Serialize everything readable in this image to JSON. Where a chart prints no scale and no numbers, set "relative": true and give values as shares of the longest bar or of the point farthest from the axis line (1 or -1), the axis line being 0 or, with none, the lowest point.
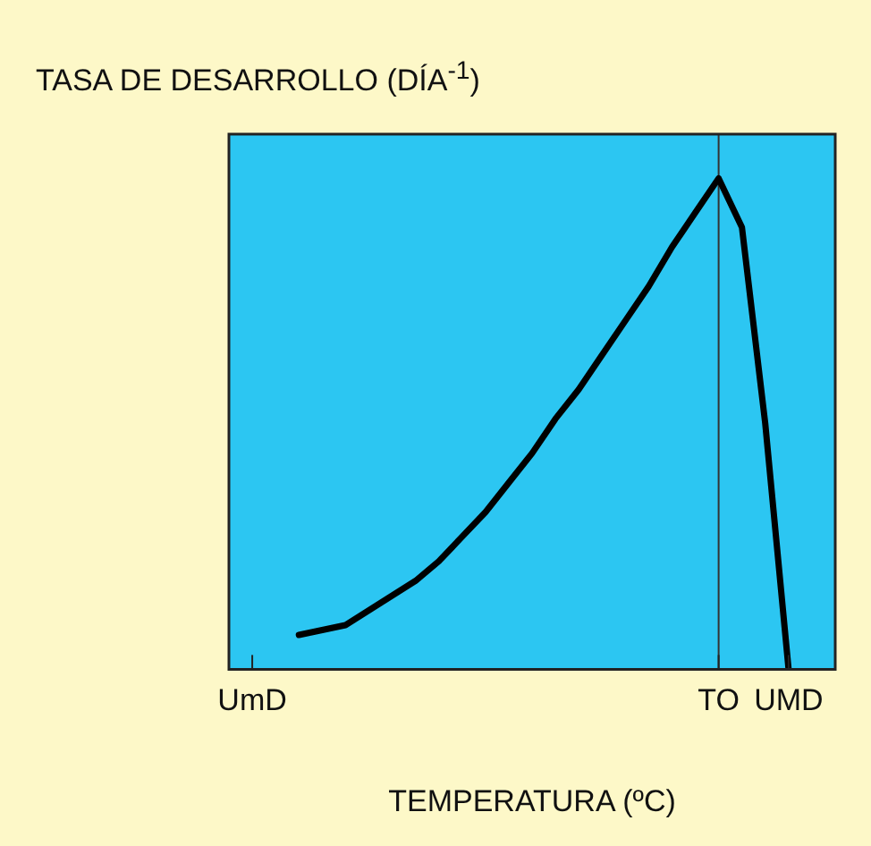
{
  "chart_data": {
    "type": "line",
    "relative": true,
    "title": "TASA DE DESARROLLO (DÍA$^{-1}$)",
    "xlabel": "TEMPERATURA (ºC)",
    "categories": [
      null,
      "UmD",
      null,
      null,
      null,
      null,
      null,
      null,
      null,
      null,
      null,
      null,
      null,
      null,
      null,
      null,
      null,
      null,
      null,
      null,
      null,
      "TO",
      null,
      null,
      "UMD",
      null,
      null
    ],
    "series": [
      {
        "color": "#000000",
        "values": [
          null,
          null,
          null,
          0.07,
          0.08,
          0.09,
          0.12,
          0.15,
          0.18,
          0.22,
          0.27,
          0.32,
          0.38,
          0.44,
          0.51,
          0.57,
          0.64,
          0.71,
          0.78,
          0.86,
          0.93,
          1,
          0.9,
          0.5,
          0,
          null,
          null
        ]
      }
    ],
    "ref_lines": [
      {
        "axis": "x",
        "value": "TO",
        "label": null,
        "color": "#333333"
      }
    ],
    "legend": false,
    "marker": "none",
    "line_style": "solid"
  }
}
